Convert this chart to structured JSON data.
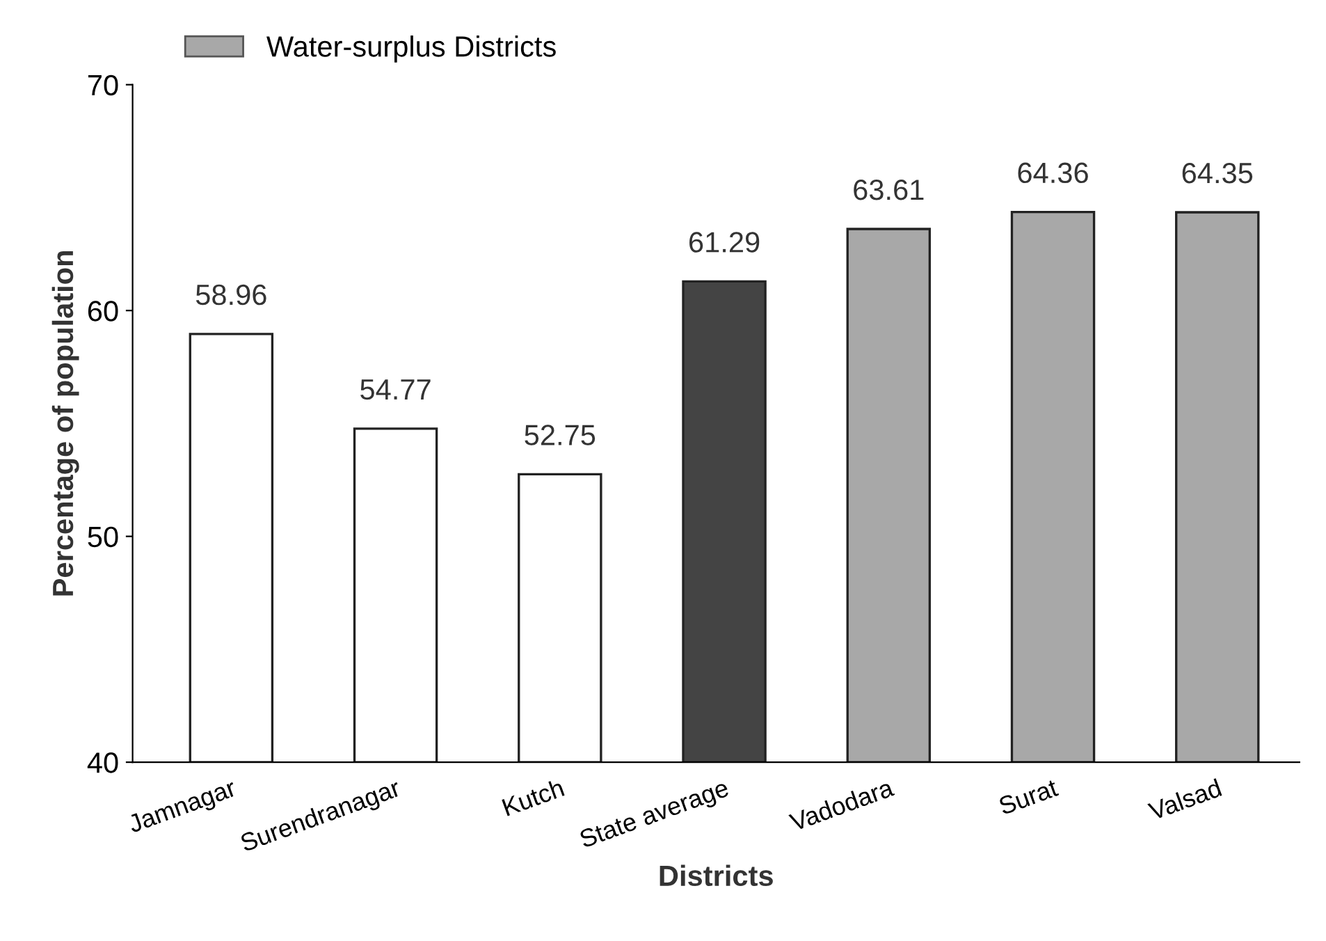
{
  "chart_data": {
    "type": "bar",
    "xlabel": "Districts",
    "ylabel": "Percentage of population",
    "categories": [
      "Jamnagar",
      "Surendranagar",
      "Kutch",
      "State average",
      "Vadodara",
      "Surat",
      "Valsad"
    ],
    "series": [
      {
        "color": "#ffffff",
        "values": [
          58.96,
          54.77,
          52.75,
          null,
          null,
          null,
          null
        ]
      },
      {
        "color": "#444444",
        "values": [
          null,
          null,
          null,
          61.29,
          null,
          null,
          null
        ]
      },
      {
        "name": "Water-surplus Districts",
        "color": "#a8a8a8",
        "values": [
          null,
          null,
          null,
          null,
          63.61,
          64.36,
          64.35
        ]
      }
    ],
    "ylim": [
      40,
      70
    ],
    "yticks": [
      40,
      50,
      60,
      70
    ],
    "data_labels": true,
    "legend": "top left",
    "grid": false
  }
}
